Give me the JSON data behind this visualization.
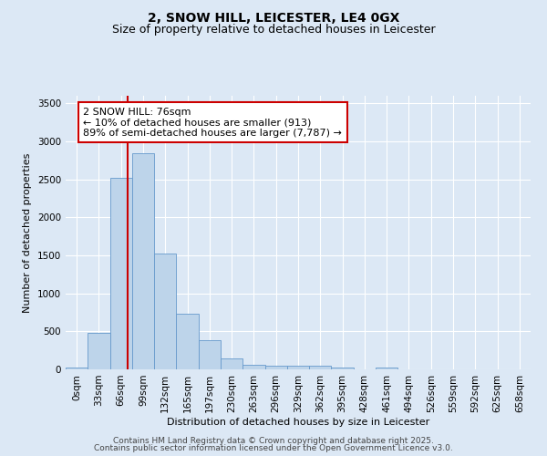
{
  "title1": "2, SNOW HILL, LEICESTER, LE4 0GX",
  "title2": "Size of property relative to detached houses in Leicester",
  "xlabel": "Distribution of detached houses by size in Leicester",
  "ylabel": "Number of detached properties",
  "bar_labels": [
    "0sqm",
    "33sqm",
    "66sqm",
    "99sqm",
    "132sqm",
    "165sqm",
    "197sqm",
    "230sqm",
    "263sqm",
    "296sqm",
    "329sqm",
    "362sqm",
    "395sqm",
    "428sqm",
    "461sqm",
    "494sqm",
    "526sqm",
    "559sqm",
    "592sqm",
    "625sqm",
    "658sqm"
  ],
  "bar_values": [
    20,
    480,
    2520,
    2850,
    1530,
    730,
    390,
    140,
    60,
    50,
    50,
    50,
    30,
    0,
    30,
    0,
    0,
    0,
    0,
    0,
    0
  ],
  "bar_color": "#bdd4ea",
  "bar_edgecolor": "#6699cc",
  "bar_width": 1.0,
  "ylim": [
    0,
    3600
  ],
  "yticks": [
    0,
    500,
    1000,
    1500,
    2000,
    2500,
    3000,
    3500
  ],
  "red_line_x": 2.3,
  "annotation_title": "2 SNOW HILL: 76sqm",
  "annotation_line1": "← 10% of detached houses are smaller (913)",
  "annotation_line2": "89% of semi-detached houses are larger (7,787) →",
  "annotation_box_color": "#ffffff",
  "annotation_box_edgecolor": "#cc0000",
  "red_line_color": "#cc0000",
  "background_color": "#dce8f5",
  "grid_color": "#ffffff",
  "footer1": "Contains HM Land Registry data © Crown copyright and database right 2025.",
  "footer2": "Contains public sector information licensed under the Open Government Licence v3.0.",
  "title_fontsize": 10,
  "subtitle_fontsize": 9,
  "axis_label_fontsize": 8,
  "tick_fontsize": 7.5,
  "annotation_fontsize": 8,
  "footer_fontsize": 6.5
}
